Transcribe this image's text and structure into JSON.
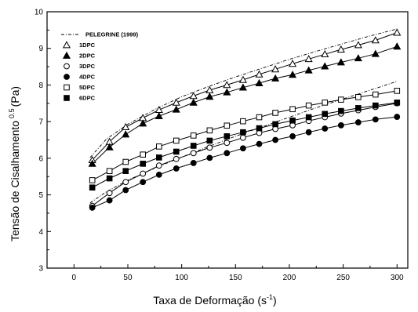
{
  "chart_data": {
    "type": "scatter",
    "xlabel": "Taxa de Deformação (s",
    "xlabel_sup": "-1",
    "xlabel_end": ")",
    "ylabel": "Tensão de Cisalhamento",
    "ylabel_sup": "0.5",
    "ylabel_unit": "(Pa)",
    "xlim": [
      -25,
      310
    ],
    "ylim": [
      3,
      10
    ],
    "xticks": [
      0,
      50,
      100,
      150,
      200,
      250,
      300
    ],
    "yticks": [
      3,
      4,
      5,
      6,
      7,
      8,
      9,
      10
    ],
    "x": [
      17,
      33,
      48,
      64,
      79,
      95,
      111,
      126,
      142,
      157,
      172,
      187,
      203,
      218,
      233,
      248,
      264,
      280,
      300
    ],
    "pelegrine_series": {
      "name": "PELEGRINE (1999)",
      "x": [
        15,
        30,
        50,
        75,
        100,
        125,
        150,
        175,
        200,
        225,
        250,
        275,
        300
      ],
      "curves": [
        [
          6.02,
          6.52,
          6.93,
          7.33,
          7.68,
          7.96,
          8.22,
          8.46,
          8.7,
          8.92,
          9.13,
          9.34,
          9.53
        ],
        [
          4.78,
          5.08,
          5.4,
          5.73,
          6.03,
          6.32,
          6.6,
          6.86,
          7.12,
          7.38,
          7.62,
          7.86,
          8.1
        ]
      ]
    },
    "series": [
      {
        "name": "1DPC",
        "marker": "triangle-open",
        "values": [
          5.95,
          6.45,
          6.85,
          7.1,
          7.32,
          7.52,
          7.7,
          7.86,
          8.0,
          8.14,
          8.29,
          8.43,
          8.58,
          8.71,
          8.84,
          8.97,
          9.09,
          9.22,
          9.43
        ]
      },
      {
        "name": "2DPC",
        "marker": "triangle-filled",
        "values": [
          5.85,
          6.3,
          6.65,
          6.95,
          7.15,
          7.33,
          7.52,
          7.68,
          7.8,
          7.93,
          8.05,
          8.18,
          8.28,
          8.4,
          8.51,
          8.62,
          8.73,
          8.85,
          9.05
        ]
      },
      {
        "name": "3DPC",
        "marker": "circle-open",
        "values": [
          4.7,
          5.05,
          5.35,
          5.58,
          5.8,
          5.98,
          6.14,
          6.29,
          6.42,
          6.56,
          6.69,
          6.8,
          6.9,
          7.02,
          7.12,
          7.22,
          7.31,
          7.4,
          7.5
        ]
      },
      {
        "name": "4DPC",
        "marker": "circle-filled",
        "values": [
          4.65,
          4.85,
          5.13,
          5.35,
          5.55,
          5.72,
          5.87,
          6.01,
          6.14,
          6.27,
          6.39,
          6.5,
          6.6,
          6.71,
          6.81,
          6.9,
          6.98,
          7.06,
          7.13
        ]
      },
      {
        "name": "5DPC",
        "marker": "square-open",
        "values": [
          5.4,
          5.65,
          5.9,
          6.1,
          6.32,
          6.48,
          6.62,
          6.76,
          6.89,
          7.01,
          7.12,
          7.24,
          7.34,
          7.44,
          7.52,
          7.6,
          7.67,
          7.74,
          7.84
        ]
      },
      {
        "name": "6DPC",
        "marker": "square-filled",
        "values": [
          5.2,
          5.45,
          5.65,
          5.85,
          6.02,
          6.18,
          6.34,
          6.48,
          6.6,
          6.71,
          6.82,
          6.93,
          7.03,
          7.12,
          7.21,
          7.29,
          7.37,
          7.44,
          7.52
        ]
      }
    ]
  }
}
